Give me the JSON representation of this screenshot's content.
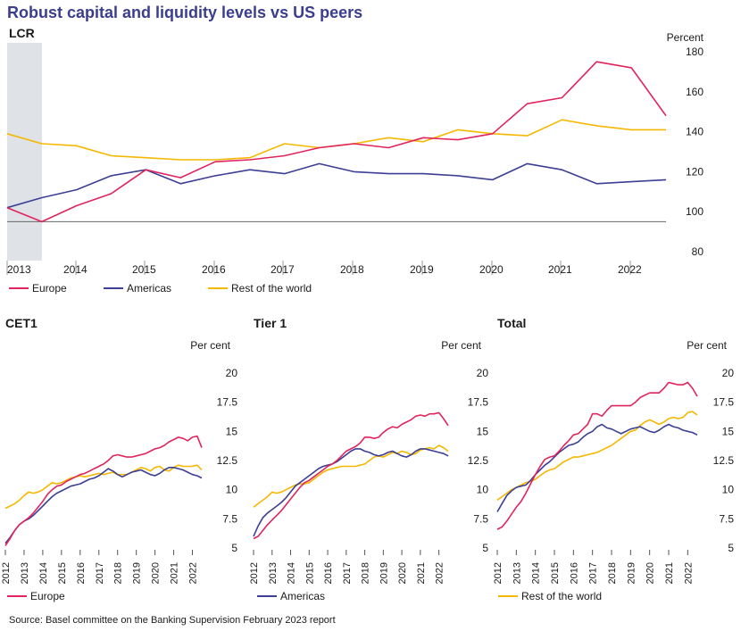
{
  "title": "Robust capital and liquidity levels vs US peers",
  "source": "Source: Basel committee on the Banking Supervision February 2023 report",
  "colors": {
    "Europe": "#e0245e",
    "Americas": "#3d3f94",
    "Rest of the world": "#f5b800"
  },
  "chart_data": [
    {
      "type": "line",
      "title": "LCR",
      "unit_label": "Percent",
      "x_labels": [
        "2013",
        "2014",
        "2015",
        "2016",
        "2017",
        "2018",
        "2019",
        "2020",
        "2021",
        "2022"
      ],
      "yticks": [
        80,
        100,
        120,
        140,
        160,
        180
      ],
      "ylim": [
        80,
        180
      ],
      "reference_line": 95,
      "shaded_period": "2013",
      "x": [
        2013.0,
        2013.5,
        2014.0,
        2014.5,
        2015.0,
        2015.5,
        2016.0,
        2016.5,
        2017.0,
        2017.5,
        2018.0,
        2018.5,
        2019.0,
        2019.5,
        2020.0,
        2020.5,
        2021.0,
        2021.5,
        2022.0,
        2022.5
      ],
      "series": [
        {
          "name": "Europe",
          "values": [
            102,
            95,
            103,
            109,
            121,
            117,
            125,
            126,
            128,
            132,
            134,
            132,
            137,
            136,
            139,
            154,
            157,
            175,
            172,
            148
          ]
        },
        {
          "name": "Americas",
          "values": [
            102,
            107,
            111,
            118,
            121,
            114,
            118,
            121,
            119,
            124,
            120,
            119,
            119,
            118,
            116,
            124,
            121,
            114,
            115,
            116
          ]
        },
        {
          "name": "Rest of the world",
          "values": [
            139,
            134,
            133,
            128,
            127,
            126,
            126,
            127,
            134,
            132,
            134,
            137,
            135,
            141,
            139,
            138,
            146,
            143,
            141,
            141
          ]
        }
      ],
      "legend": [
        "Europe",
        "Americas",
        "Rest of the world"
      ],
      "legend_position": "bottom"
    },
    {
      "type": "line",
      "title": "CET1",
      "unit_label": "Per cent",
      "x_labels": [
        "2012",
        "2013",
        "2014",
        "2015",
        "2016",
        "2017",
        "2018",
        "2019",
        "2020",
        "2021",
        "2022"
      ],
      "yticks": [
        5,
        7.5,
        10,
        12.5,
        15,
        17.5,
        20
      ],
      "ylim": [
        5,
        20
      ],
      "x": [
        2012.0,
        2012.25,
        2012.5,
        2012.75,
        2013.0,
        2013.25,
        2013.5,
        2013.75,
        2014.0,
        2014.25,
        2014.5,
        2014.75,
        2015.0,
        2015.25,
        2015.5,
        2015.75,
        2016.0,
        2016.25,
        2016.5,
        2016.75,
        2017.0,
        2017.25,
        2017.5,
        2017.75,
        2018.0,
        2018.25,
        2018.5,
        2018.75,
        2019.0,
        2019.25,
        2019.5,
        2019.75,
        2020.0,
        2020.25,
        2020.5,
        2020.75,
        2021.0,
        2021.25,
        2021.5,
        2021.75,
        2022.0,
        2022.25,
        2022.5
      ],
      "series": [
        {
          "name": "Europe",
          "values": [
            5.2,
            5.8,
            6.5,
            7.0,
            7.3,
            7.6,
            8.0,
            8.5,
            9.0,
            9.6,
            10.0,
            10.3,
            10.4,
            10.7,
            10.9,
            11.1,
            11.3,
            11.4,
            11.6,
            11.8,
            12.0,
            12.2,
            12.5,
            12.9,
            13.0,
            12.9,
            12.8,
            12.8,
            12.9,
            13.0,
            13.1,
            13.3,
            13.5,
            13.6,
            13.8,
            14.1,
            14.3,
            14.5,
            14.4,
            14.2,
            14.5,
            14.6,
            13.6
          ]
        },
        {
          "name": "Americas",
          "values": [
            5.4,
            5.9,
            6.5,
            7.0,
            7.3,
            7.5,
            7.8,
            8.2,
            8.6,
            9.0,
            9.4,
            9.7,
            9.9,
            10.1,
            10.3,
            10.4,
            10.5,
            10.7,
            10.9,
            11.0,
            11.2,
            11.5,
            11.8,
            11.6,
            11.3,
            11.1,
            11.3,
            11.5,
            11.6,
            11.7,
            11.5,
            11.3,
            11.2,
            11.4,
            11.7,
            11.9,
            11.9,
            11.8,
            11.7,
            11.5,
            11.3,
            11.2,
            11.0
          ]
        },
        {
          "name": "Rest of the world",
          "values": [
            8.4,
            8.6,
            8.8,
            9.1,
            9.5,
            9.8,
            9.7,
            9.8,
            10.0,
            10.3,
            10.6,
            10.5,
            10.6,
            10.8,
            11.0,
            11.1,
            11.2,
            11.1,
            11.2,
            11.3,
            11.4,
            11.3,
            11.4,
            11.5,
            11.3,
            11.3,
            11.3,
            11.5,
            11.7,
            11.9,
            11.8,
            11.6,
            11.9,
            12.0,
            11.7,
            11.6,
            11.9,
            12.1,
            12.0,
            12.0,
            12.0,
            12.1,
            11.7
          ]
        }
      ],
      "legend": [
        "Europe"
      ],
      "legend_position": "bottom"
    },
    {
      "type": "line",
      "title": "Tier 1",
      "unit_label": "Per cent",
      "x_labels": [
        "2012",
        "2013",
        "2014",
        "2015",
        "2016",
        "2017",
        "2018",
        "2019",
        "2020",
        "2021",
        "2022"
      ],
      "yticks": [
        5,
        7.5,
        10,
        12.5,
        15,
        17.5,
        20
      ],
      "ylim": [
        5,
        20
      ],
      "x": [
        2012.0,
        2012.25,
        2012.5,
        2012.75,
        2013.0,
        2013.25,
        2013.5,
        2013.75,
        2014.0,
        2014.25,
        2014.5,
        2014.75,
        2015.0,
        2015.25,
        2015.5,
        2015.75,
        2016.0,
        2016.25,
        2016.5,
        2016.75,
        2017.0,
        2017.25,
        2017.5,
        2017.75,
        2018.0,
        2018.25,
        2018.5,
        2018.75,
        2019.0,
        2019.25,
        2019.5,
        2019.75,
        2020.0,
        2020.25,
        2020.5,
        2020.75,
        2021.0,
        2021.25,
        2021.5,
        2021.75,
        2022.0,
        2022.25,
        2022.5
      ],
      "series": [
        {
          "name": "Europe",
          "values": [
            5.8,
            6.0,
            6.5,
            7.0,
            7.4,
            7.8,
            8.2,
            8.7,
            9.2,
            9.7,
            10.2,
            10.6,
            10.8,
            11.1,
            11.4,
            11.7,
            12.0,
            12.2,
            12.5,
            12.9,
            13.3,
            13.5,
            13.7,
            14.0,
            14.5,
            14.5,
            14.4,
            14.5,
            14.9,
            15.2,
            15.4,
            15.3,
            15.6,
            15.8,
            16.0,
            16.3,
            16.4,
            16.3,
            16.5,
            16.5,
            16.6,
            16.1,
            15.5
          ]
        },
        {
          "name": "Americas",
          "values": [
            6.0,
            6.9,
            7.6,
            8.0,
            8.3,
            8.6,
            8.9,
            9.3,
            9.8,
            10.3,
            10.6,
            10.9,
            11.2,
            11.5,
            11.8,
            12.0,
            12.1,
            12.2,
            12.4,
            12.7,
            13.0,
            13.3,
            13.5,
            13.5,
            13.3,
            13.2,
            13.0,
            12.9,
            13.0,
            13.2,
            13.3,
            13.1,
            12.9,
            12.8,
            13.0,
            13.3,
            13.5,
            13.5,
            13.4,
            13.3,
            13.2,
            13.1,
            12.9
          ]
        },
        {
          "name": "Rest of the world",
          "values": [
            8.5,
            8.8,
            9.1,
            9.4,
            9.8,
            9.7,
            9.8,
            10.0,
            10.2,
            10.4,
            10.5,
            10.5,
            10.6,
            10.9,
            11.2,
            11.5,
            11.7,
            11.8,
            11.9,
            12.0,
            12.0,
            12.0,
            12.0,
            12.1,
            12.2,
            12.5,
            12.8,
            12.9,
            12.8,
            13.0,
            13.2,
            13.1,
            13.3,
            13.2,
            13.0,
            13.1,
            13.4,
            13.5,
            13.6,
            13.5,
            13.8,
            13.6,
            13.3
          ]
        }
      ],
      "legend": [
        "Americas"
      ],
      "legend_position": "bottom"
    },
    {
      "type": "line",
      "title": "Total",
      "unit_label": "Per cent",
      "x_labels": [
        "2012",
        "2013",
        "2014",
        "2015",
        "2016",
        "2017",
        "2018",
        "2019",
        "2020",
        "2021",
        "2022"
      ],
      "yticks": [
        5,
        7.5,
        10,
        12.5,
        15,
        17.5,
        20
      ],
      "ylim": [
        5,
        20
      ],
      "x": [
        2012.0,
        2012.25,
        2012.5,
        2012.75,
        2013.0,
        2013.25,
        2013.5,
        2013.75,
        2014.0,
        2014.25,
        2014.5,
        2014.75,
        2015.0,
        2015.25,
        2015.5,
        2015.75,
        2016.0,
        2016.25,
        2016.5,
        2016.75,
        2017.0,
        2017.25,
        2017.5,
        2017.75,
        2018.0,
        2018.25,
        2018.5,
        2018.75,
        2019.0,
        2019.25,
        2019.5,
        2019.75,
        2020.0,
        2020.25,
        2020.5,
        2020.75,
        2021.0,
        2021.25,
        2021.5,
        2021.75,
        2022.0,
        2022.25,
        2022.5
      ],
      "series": [
        {
          "name": "Europe",
          "values": [
            6.6,
            6.8,
            7.3,
            7.9,
            8.5,
            9.0,
            9.7,
            10.5,
            11.3,
            12.0,
            12.6,
            12.8,
            12.9,
            13.3,
            13.8,
            14.2,
            14.7,
            14.8,
            15.2,
            15.6,
            16.5,
            16.5,
            16.3,
            16.8,
            17.2,
            17.2,
            17.2,
            17.2,
            17.2,
            17.5,
            17.9,
            18.1,
            18.3,
            18.3,
            18.3,
            18.7,
            19.2,
            19.1,
            19.0,
            19.0,
            19.2,
            18.7,
            18.0
          ]
        },
        {
          "name": "Americas",
          "values": [
            8.1,
            8.8,
            9.5,
            9.9,
            10.2,
            10.3,
            10.4,
            10.8,
            11.3,
            11.7,
            12.1,
            12.4,
            12.8,
            13.2,
            13.5,
            13.8,
            13.9,
            14.1,
            14.5,
            14.8,
            15.0,
            15.4,
            15.6,
            15.3,
            15.2,
            15.0,
            14.8,
            15.0,
            15.2,
            15.3,
            15.4,
            15.2,
            15.0,
            14.9,
            15.1,
            15.4,
            15.6,
            15.4,
            15.3,
            15.1,
            15.0,
            14.9,
            14.7
          ]
        },
        {
          "name": "Rest of the world",
          "values": [
            9.1,
            9.4,
            9.7,
            10.0,
            10.2,
            10.4,
            10.6,
            10.7,
            10.9,
            11.2,
            11.5,
            11.7,
            11.8,
            12.1,
            12.4,
            12.6,
            12.8,
            12.8,
            12.9,
            13.0,
            13.1,
            13.2,
            13.4,
            13.6,
            13.8,
            14.1,
            14.4,
            14.7,
            15.0,
            15.1,
            15.5,
            15.8,
            16.0,
            15.8,
            15.6,
            15.8,
            16.1,
            16.2,
            16.1,
            16.2,
            16.6,
            16.7,
            16.4
          ]
        }
      ],
      "legend": [
        "Rest of the world"
      ],
      "legend_position": "bottom"
    }
  ]
}
